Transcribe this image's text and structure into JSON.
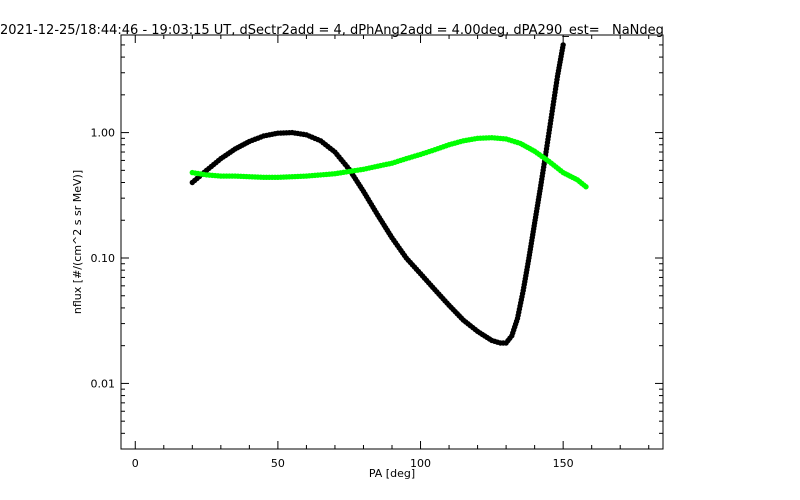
{
  "chart_data": {
    "type": "line",
    "title": "2021-12-25/18:44:46 - 19:03:15 UT, dSectr2add = 4, dPhAng2add = 4.00deg, dPA290_est=   NaNdeg",
    "xlabel": "PA [deg]",
    "ylabel": "nflux [#/(cm^2 s sr MeV)]",
    "xlim": [
      -5,
      185
    ],
    "ylim": [
      0.003,
      6
    ],
    "yscale": "log",
    "x_ticks": [
      0,
      50,
      100,
      150
    ],
    "x_tick_labels": [
      "0",
      "50",
      "100",
      "150"
    ],
    "y_ticks": [
      0.01,
      0.1,
      1.0
    ],
    "y_tick_labels": [
      "0.01",
      "0.10",
      "1.00"
    ],
    "grid": false,
    "series": [
      {
        "color": "#000000",
        "x": [
          20,
          25,
          30,
          35,
          40,
          45,
          50,
          55,
          60,
          65,
          70,
          75,
          80,
          85,
          90,
          95,
          100,
          105,
          110,
          115,
          120,
          125,
          128,
          130,
          132,
          134,
          136,
          138,
          140,
          142,
          144,
          146,
          148,
          150
        ],
        "y": [
          0.4,
          0.5,
          0.62,
          0.74,
          0.85,
          0.94,
          0.99,
          1.0,
          0.96,
          0.86,
          0.7,
          0.51,
          0.34,
          0.22,
          0.145,
          0.1,
          0.075,
          0.056,
          0.042,
          0.032,
          0.026,
          0.022,
          0.021,
          0.021,
          0.024,
          0.033,
          0.055,
          0.1,
          0.19,
          0.36,
          0.7,
          1.4,
          2.8,
          5.0
        ]
      },
      {
        "color": "#00ff00",
        "x": [
          20,
          25,
          30,
          35,
          40,
          45,
          50,
          55,
          60,
          65,
          70,
          75,
          80,
          85,
          90,
          95,
          100,
          105,
          110,
          115,
          120,
          125,
          130,
          135,
          140,
          145,
          150,
          155,
          158
        ],
        "y": [
          0.48,
          0.46,
          0.45,
          0.45,
          0.445,
          0.44,
          0.44,
          0.445,
          0.45,
          0.46,
          0.47,
          0.49,
          0.51,
          0.54,
          0.57,
          0.62,
          0.67,
          0.73,
          0.8,
          0.86,
          0.9,
          0.91,
          0.89,
          0.82,
          0.71,
          0.59,
          0.48,
          0.42,
          0.37
        ]
      }
    ]
  }
}
